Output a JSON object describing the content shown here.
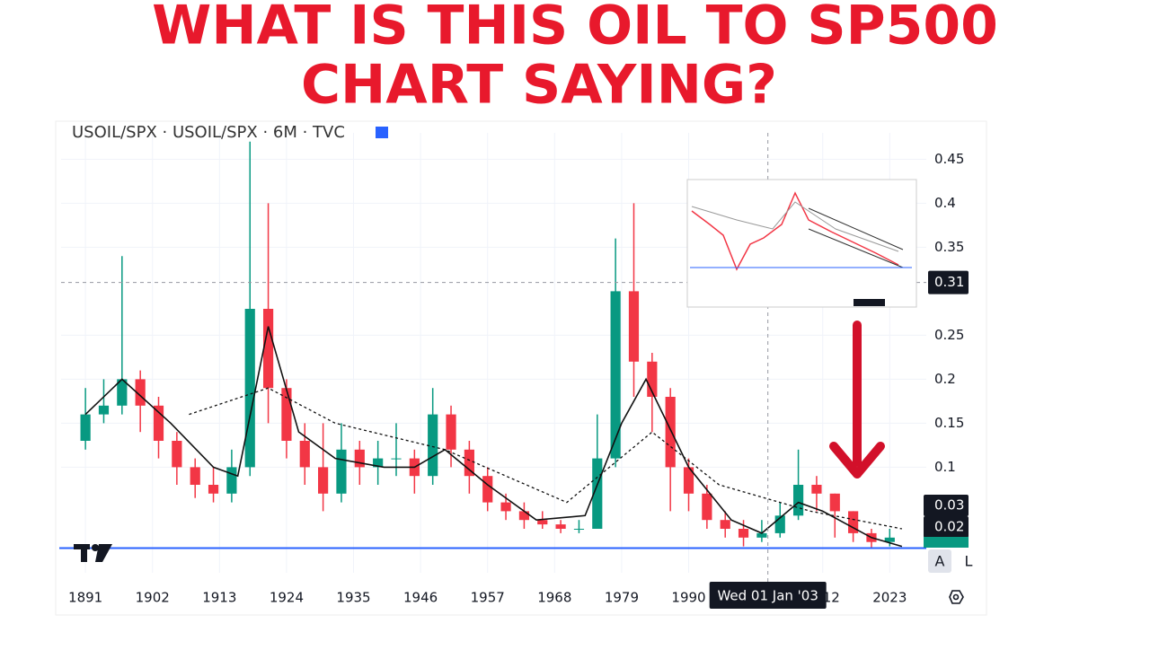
{
  "chart_data": {
    "type": "candlestick",
    "title_lines": [
      "WHAT IS THIS OIL TO SP500",
      "CHART SAYING?"
    ],
    "symbol": "USOIL/SPX · USOIL/SPX · 6M · TVC",
    "candles": {
      "x": [
        1891,
        1894,
        1897,
        1900,
        1903,
        1906,
        1909,
        1912,
        1915,
        1918,
        1921,
        1924,
        1927,
        1930,
        1933,
        1936,
        1939,
        1942,
        1945,
        1948,
        1951,
        1954,
        1957,
        1960,
        1963,
        1966,
        1969,
        1972,
        1975,
        1978,
        1981,
        1984,
        1987,
        1990,
        1993,
        1996,
        1999,
        2002,
        2005,
        2008,
        2011,
        2014,
        2017,
        2020,
        2023
      ],
      "open": [
        0.13,
        0.16,
        0.17,
        0.2,
        0.17,
        0.13,
        0.1,
        0.08,
        0.07,
        0.1,
        0.28,
        0.19,
        0.13,
        0.1,
        0.07,
        0.12,
        0.1,
        0.11,
        0.11,
        0.09,
        0.16,
        0.12,
        0.09,
        0.06,
        0.05,
        0.04,
        0.035,
        0.03,
        0.03,
        0.11,
        0.3,
        0.22,
        0.18,
        0.1,
        0.07,
        0.04,
        0.03,
        0.02,
        0.025,
        0.045,
        0.08,
        0.07,
        0.05,
        0.025,
        0.015
      ],
      "high": [
        0.19,
        0.2,
        0.34,
        0.21,
        0.18,
        0.14,
        0.11,
        0.1,
        0.12,
        0.47,
        0.4,
        0.2,
        0.15,
        0.15,
        0.15,
        0.13,
        0.13,
        0.15,
        0.12,
        0.19,
        0.17,
        0.13,
        0.1,
        0.07,
        0.06,
        0.05,
        0.04,
        0.04,
        0.16,
        0.36,
        0.4,
        0.23,
        0.19,
        0.11,
        0.08,
        0.05,
        0.04,
        0.04,
        0.06,
        0.12,
        0.09,
        0.07,
        0.05,
        0.03,
        0.03
      ],
      "low": [
        0.12,
        0.15,
        0.16,
        0.14,
        0.11,
        0.08,
        0.065,
        0.06,
        0.06,
        0.09,
        0.15,
        0.11,
        0.08,
        0.05,
        0.06,
        0.08,
        0.08,
        0.09,
        0.07,
        0.08,
        0.1,
        0.07,
        0.05,
        0.04,
        0.03,
        0.03,
        0.025,
        0.025,
        0.03,
        0.1,
        0.18,
        0.14,
        0.05,
        0.05,
        0.03,
        0.02,
        0.01,
        0.015,
        0.02,
        0.04,
        0.05,
        0.02,
        0.015,
        0.008,
        0.01
      ],
      "close": [
        0.16,
        0.17,
        0.2,
        0.17,
        0.13,
        0.1,
        0.08,
        0.07,
        0.1,
        0.28,
        0.19,
        0.13,
        0.1,
        0.07,
        0.12,
        0.1,
        0.11,
        0.11,
        0.09,
        0.16,
        0.12,
        0.09,
        0.06,
        0.05,
        0.04,
        0.035,
        0.03,
        0.03,
        0.11,
        0.3,
        0.22,
        0.18,
        0.1,
        0.07,
        0.04,
        0.03,
        0.02,
        0.025,
        0.045,
        0.08,
        0.07,
        0.05,
        0.025,
        0.015,
        0.02
      ],
      "up_color": "#089981",
      "down_color": "#f23645"
    },
    "lines": [
      {
        "color": "#111111",
        "style": "solid",
        "x": [
          1891,
          1897,
          1905,
          1912,
          1916,
          1921,
          1926,
          1932,
          1940,
          1945,
          1950,
          1957,
          1965,
          1973,
          1979,
          1983,
          1990,
          1997,
          2002,
          2008,
          2012,
          2020,
          2025
        ],
        "values": [
          0.16,
          0.2,
          0.15,
          0.1,
          0.09,
          0.26,
          0.14,
          0.11,
          0.1,
          0.1,
          0.12,
          0.08,
          0.04,
          0.045,
          0.15,
          0.2,
          0.1,
          0.04,
          0.025,
          0.06,
          0.05,
          0.02,
          0.01
        ]
      },
      {
        "color": "#111111",
        "style": "dashed",
        "x": [
          1908,
          1921,
          1932,
          1950,
          1970,
          1984,
          1995,
          2010,
          2025
        ],
        "values": [
          0.16,
          0.19,
          0.15,
          0.12,
          0.06,
          0.14,
          0.08,
          0.05,
          0.03
        ]
      }
    ],
    "hline": {
      "value": 0.008,
      "color": "#2962ff"
    },
    "crosshair": {
      "x": 2003,
      "x_label": "Wed 01 Jan '03",
      "y": 0.31
    },
    "price_labels": [
      0.03,
      0.02
    ],
    "xlim": [
      1887,
      2029
    ],
    "xticks": [
      1891,
      1902,
      1913,
      1924,
      1935,
      1946,
      1957,
      1968,
      1979,
      1990,
      2012,
      2023
    ],
    "ylim": [
      -0.02,
      0.48
    ],
    "yticks": [
      0.45,
      0.4,
      0.35,
      0.25,
      0.2,
      0.15,
      0.1
    ],
    "grid": true,
    "buttons": [
      "A",
      "L"
    ]
  }
}
